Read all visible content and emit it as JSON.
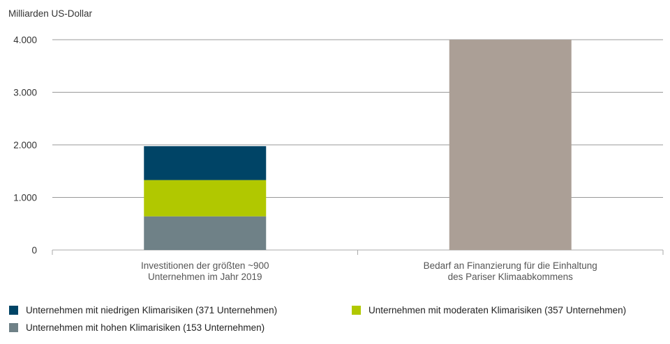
{
  "chart_data": {
    "type": "bar",
    "stacked": true,
    "ylabel": "Milliarden US-Dollar",
    "ylim": [
      0,
      4000
    ],
    "yticks": [
      0,
      1000,
      2000,
      3000,
      4000
    ],
    "ytick_labels": [
      "0",
      "1.000",
      "2.000",
      "3.000",
      "4.000"
    ],
    "grid": true,
    "legend_placement": "bottom",
    "categories": [
      [
        "Investitionen der größten ~900",
        "Unternehmen im Jahr 2019"
      ],
      [
        "Bedarf an Finanzierung für die Einhaltung",
        "des Pariser Klimaabkommens"
      ]
    ],
    "series": [
      {
        "name": "Unternehmen mit hohen Klimarisiken (153 Unternehmen)",
        "color": "#6f8187",
        "values": [
          640,
          null
        ]
      },
      {
        "name": "Unternehmen mit moderaten Klimarisiken (357 Unternehmen)",
        "color": "#b1c800",
        "values": [
          690,
          null
        ]
      },
      {
        "name": "Unternehmen mit niedrigen Klimarisiken (371 Unternehmen)",
        "color": "#004466",
        "values": [
          645,
          null
        ]
      },
      {
        "name": "",
        "color": "#ab9f96",
        "values": [
          null,
          4000
        ]
      }
    ]
  },
  "legend": [
    {
      "label": "Unternehmen mit niedrigen Klimarisiken (371 Unternehmen)",
      "color": "#004466"
    },
    {
      "label": "Unternehmen mit moderaten Klimarisiken (357 Unternehmen)",
      "color": "#b1c800"
    },
    {
      "label": "Unternehmen mit hohen Klimarisiken (153 Unternehmen)",
      "color": "#6f8187"
    }
  ]
}
